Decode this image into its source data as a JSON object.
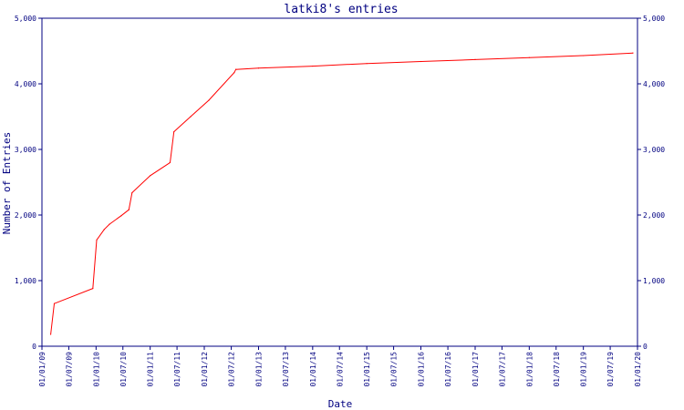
{
  "chart_data": {
    "type": "line",
    "title": "latki8's entries",
    "xlabel": "Date",
    "ylabel": "Number of Entries",
    "ylim": [
      0,
      5000
    ],
    "xlim": [
      "2009-01-01",
      "2020-01-01"
    ],
    "y_ticks": [
      0,
      1000,
      2000,
      3000,
      4000,
      5000
    ],
    "y_tick_labels": [
      "0",
      "1,000",
      "2,000",
      "3,000",
      "4,000",
      "5,000"
    ],
    "x_ticks": [
      "2009-01-01",
      "2009-07-01",
      "2010-01-01",
      "2010-07-01",
      "2011-01-01",
      "2011-07-01",
      "2012-01-01",
      "2012-07-01",
      "2013-01-01",
      "2013-07-01",
      "2014-01-01",
      "2014-07-01",
      "2015-01-01",
      "2015-07-01",
      "2016-01-01",
      "2016-07-01",
      "2017-01-01",
      "2017-07-01",
      "2018-01-01",
      "2018-07-01",
      "2019-01-01",
      "2019-07-01",
      "2020-01-01"
    ],
    "x_tick_labels": [
      "01/01/09",
      "01/07/09",
      "01/01/10",
      "01/07/10",
      "01/01/11",
      "01/07/11",
      "01/01/12",
      "01/07/12",
      "01/01/13",
      "01/07/13",
      "01/01/14",
      "01/07/14",
      "01/01/15",
      "01/07/15",
      "01/01/16",
      "01/07/16",
      "01/01/17",
      "01/07/17",
      "01/01/18",
      "01/07/18",
      "01/01/19",
      "01/07/19",
      "01/01/20"
    ],
    "grid": false,
    "line_color": "#ff0000",
    "axis_color": "#000080",
    "series": [
      {
        "x": [
          "2009-03-01",
          "2009-03-25",
          "2009-12-10",
          "2010-01-05",
          "2010-02-25",
          "2010-04-01",
          "2010-06-20",
          "2010-08-10",
          "2010-09-01",
          "2011-01-01",
          "2011-05-15",
          "2011-06-10",
          "2011-10-01",
          "2012-02-01",
          "2012-07-20",
          "2012-08-01",
          "2013-01-01",
          "2014-01-01",
          "2015-01-01",
          "2016-01-01",
          "2017-01-01",
          "2018-01-01",
          "2019-01-01",
          "2019-12-01"
        ],
        "y": [
          180,
          650,
          880,
          1620,
          1780,
          1860,
          1990,
          2080,
          2340,
          2600,
          2800,
          3270,
          3500,
          3750,
          4170,
          4220,
          4240,
          4270,
          4310,
          4340,
          4370,
          4400,
          4430,
          4470
        ]
      }
    ]
  }
}
